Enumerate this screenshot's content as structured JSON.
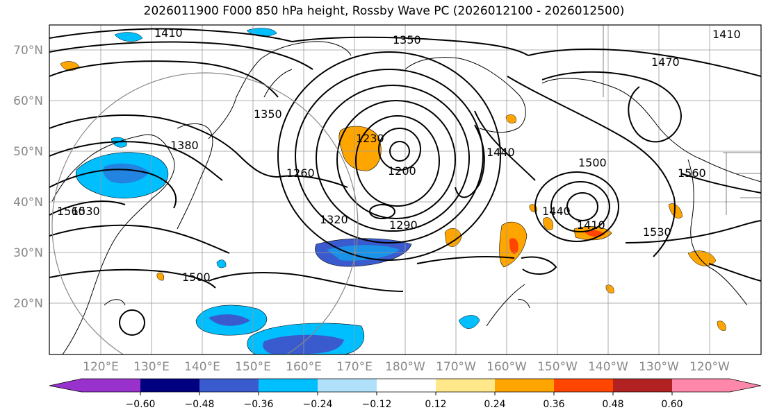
{
  "title": "2026011900 F000 850 hPa height, Rossby Wave PC (2026012100 - 2026012500)",
  "map": {
    "lat_labels": [
      "70°N",
      "60°N",
      "50°N",
      "40°N",
      "30°N",
      "20°N"
    ],
    "lon_labels": [
      "120°E",
      "130°E",
      "140°E",
      "150°E",
      "160°E",
      "170°E",
      "180°W",
      "170°W",
      "160°W",
      "150°W",
      "140°W",
      "130°W",
      "120°W"
    ],
    "contour_labels": [
      "1410",
      "1350",
      "1470",
      "1410",
      "1380",
      "1350",
      "1230",
      "1200",
      "1260",
      "1440",
      "1500",
      "1560",
      "1560",
      "1530",
      "1320",
      "1290",
      "1440",
      "1410",
      "1530",
      "1500"
    ]
  },
  "colorbar": {
    "ticks": [
      "−0.60",
      "−0.48",
      "−0.36",
      "−0.24",
      "−0.12",
      "0.12",
      "0.24",
      "0.36",
      "0.48",
      "0.60"
    ],
    "colors": [
      "#9932cc",
      "#000080",
      "#3a5bcd",
      "#00bfff",
      "#b0e0fa",
      "#ffffff",
      "#ffe88a",
      "#ffa500",
      "#ff4500",
      "#b22222",
      "#ff88aa"
    ]
  }
}
